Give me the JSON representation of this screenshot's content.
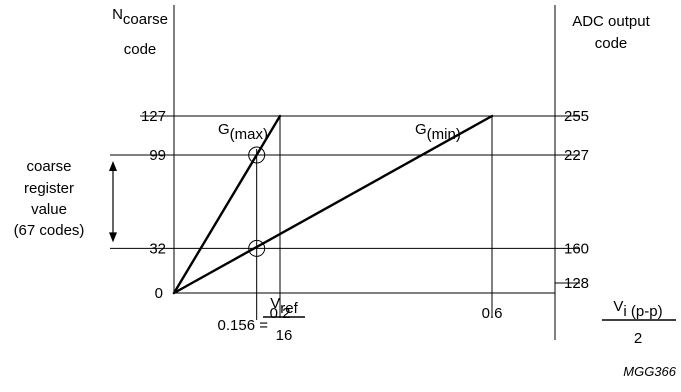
{
  "chart_data": {
    "type": "line",
    "x_unit_numerator": "V",
    "x_unit_sub": "i (p-p)",
    "x_unit_denominator": "2",
    "left_axis_title_main": "N",
    "left_axis_title_sub": "coarse",
    "left_axis_title_line2": "code",
    "right_axis_title_line1": "ADC output",
    "right_axis_title_line2": "code",
    "xlim": [
      0,
      0.68
    ],
    "ylim": [
      0,
      127
    ],
    "origin_label": "0",
    "x_ticks": [
      {
        "value": 0.2,
        "label": "0.2"
      },
      {
        "value": 0.6,
        "label": "0.6"
      }
    ],
    "vref_marker": {
      "value": 0.156,
      "prefix": "0.156 =",
      "num_main": "V",
      "num_sub": "ref",
      "den": "16"
    },
    "left_ticks": [
      {
        "value": 127,
        "label": "127"
      },
      {
        "value": 99,
        "label": "99"
      },
      {
        "value": 32,
        "label": "32"
      }
    ],
    "right_ticks": [
      {
        "value": 127,
        "label": "255"
      },
      {
        "value": 99,
        "label": "227"
      },
      {
        "value": 32,
        "label": "160"
      },
      {
        "value": 0,
        "label": "128"
      }
    ],
    "series": [
      {
        "name": "G(max)",
        "name_main": "G",
        "name_sub": "(max)",
        "x": [
          0,
          0.2
        ],
        "y": [
          0,
          127
        ]
      },
      {
        "name": "G(min)",
        "name_main": "G",
        "name_sub": "(min)",
        "x": [
          0,
          0.6
        ],
        "y": [
          0,
          127
        ]
      }
    ],
    "intersections": [
      {
        "x": 0.156,
        "y": 99
      },
      {
        "x": 0.156,
        "y": 32
      }
    ],
    "annotation": {
      "lines": [
        "coarse",
        "register",
        "value",
        "(67 codes)"
      ],
      "from_value": 99,
      "to_value": 32
    },
    "figure_code": "MGG366"
  }
}
